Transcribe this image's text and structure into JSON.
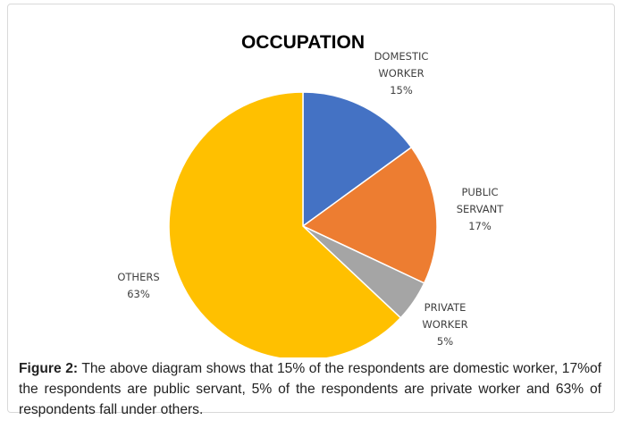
{
  "chart_data": {
    "type": "pie",
    "title": "OCCUPATION",
    "categories": [
      "DOMESTIC WORKER",
      "PUBLIC SERVANT",
      "PRIVATE WORKER",
      "OTHERS"
    ],
    "values": [
      15,
      17,
      5,
      63
    ],
    "value_labels": [
      "15%",
      "17%",
      "5%",
      "63%"
    ],
    "colors": [
      "#4472c4",
      "#ed7d31",
      "#a5a5a5",
      "#ffc000"
    ]
  },
  "caption": {
    "label": "Figure 2:",
    "text": "The above diagram shows that 15% of the respondents are domestic worker, 17%of the respondents are public servant, 5% of the respondents are private worker and 63% of respondents fall under others."
  }
}
